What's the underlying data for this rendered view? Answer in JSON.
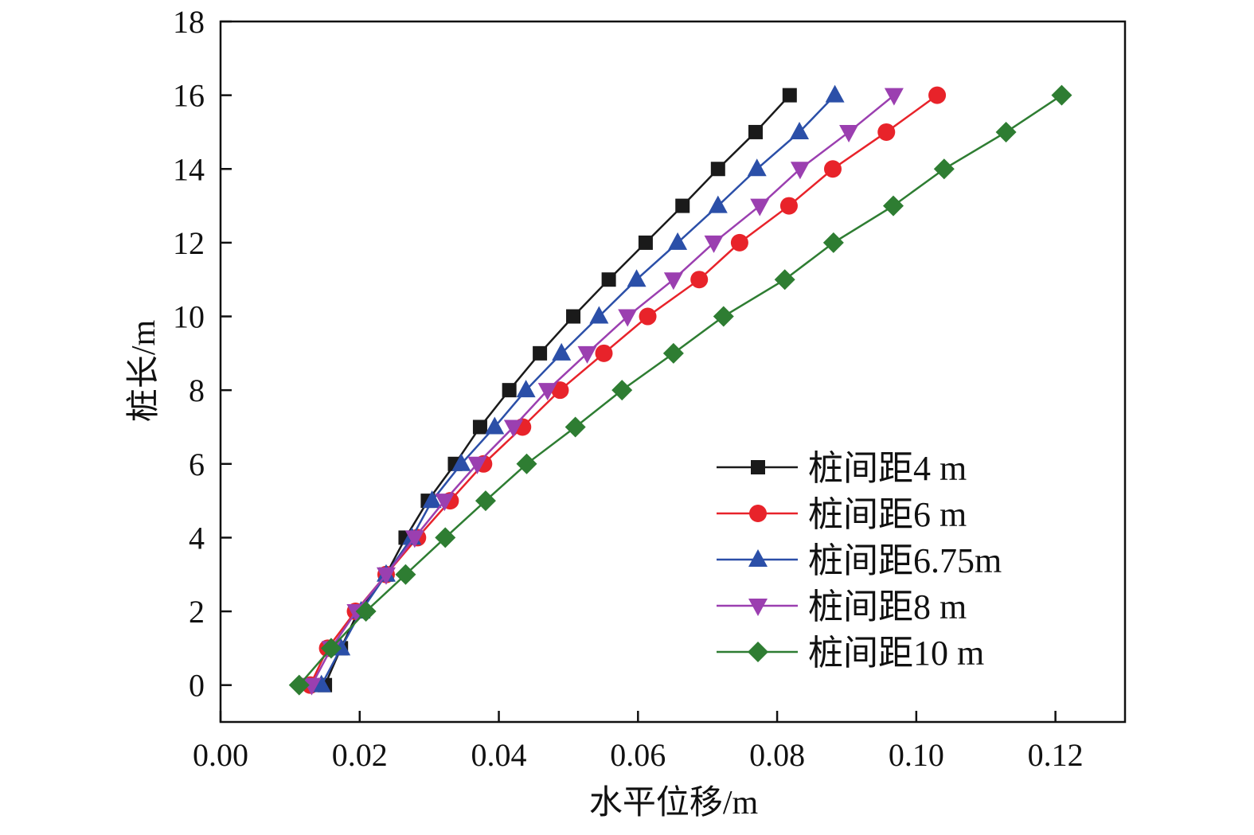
{
  "chart_data": {
    "type": "line",
    "title": "",
    "xlabel": "水平位移/m",
    "ylabel": "桩长/m",
    "xlim": [
      0,
      0.13
    ],
    "ylim": [
      -1,
      18
    ],
    "xticks": [
      0,
      0.02,
      0.04,
      0.06,
      0.08,
      0.1,
      0.12
    ],
    "xtick_labels": [
      "0.00",
      "0.02",
      "0.04",
      "0.06",
      "0.08",
      "0.10",
      "0.12"
    ],
    "yticks": [
      0,
      2,
      4,
      6,
      8,
      10,
      12,
      14,
      16,
      18
    ],
    "ytick_labels": [
      "0",
      "2",
      "4",
      "6",
      "8",
      "10",
      "12",
      "14",
      "16",
      "18"
    ],
    "grid": false,
    "legend_position": "bottom-right",
    "y": [
      0,
      1,
      2,
      3,
      4,
      5,
      6,
      7,
      8,
      9,
      10,
      11,
      12,
      13,
      14,
      15,
      16
    ],
    "series": [
      {
        "name": "桩间距4 m",
        "color": "#1a1a1a",
        "marker": "square",
        "x": [
          0.015,
          0.0173,
          0.0198,
          0.0238,
          0.0266,
          0.0298,
          0.0337,
          0.0373,
          0.0415,
          0.0459,
          0.0507,
          0.0558,
          0.0611,
          0.0664,
          0.0715,
          0.0769,
          0.0818
        ]
      },
      {
        "name": "桩间距6 m",
        "color": "#e8232a",
        "marker": "circle",
        "x": [
          0.0129,
          0.0154,
          0.0194,
          0.0238,
          0.0283,
          0.033,
          0.0378,
          0.0434,
          0.0488,
          0.0551,
          0.0614,
          0.0688,
          0.0746,
          0.0817,
          0.088,
          0.0957,
          0.103
        ]
      },
      {
        "name": "桩间距6.75m",
        "color": "#2b4fa8",
        "marker": "triangle-up",
        "x": [
          0.0145,
          0.0173,
          0.0202,
          0.0238,
          0.0275,
          0.0304,
          0.0346,
          0.0394,
          0.0439,
          0.049,
          0.0544,
          0.0598,
          0.0657,
          0.0715,
          0.0771,
          0.0832,
          0.0883
        ]
      },
      {
        "name": "桩间距8 m",
        "color": "#9b3fb0",
        "marker": "triangle-down",
        "x": [
          0.0131,
          0.0159,
          0.0195,
          0.0238,
          0.0279,
          0.0322,
          0.0369,
          0.0421,
          0.047,
          0.0527,
          0.0585,
          0.0651,
          0.0709,
          0.0775,
          0.0833,
          0.0903,
          0.0968
        ]
      },
      {
        "name": "桩间距10 m",
        "color": "#2e7d32",
        "marker": "diamond",
        "x": [
          0.0113,
          0.0159,
          0.0209,
          0.0266,
          0.0323,
          0.0381,
          0.044,
          0.051,
          0.0577,
          0.0651,
          0.0723,
          0.0811,
          0.0881,
          0.0967,
          0.104,
          0.1129,
          0.1209
        ]
      }
    ]
  }
}
